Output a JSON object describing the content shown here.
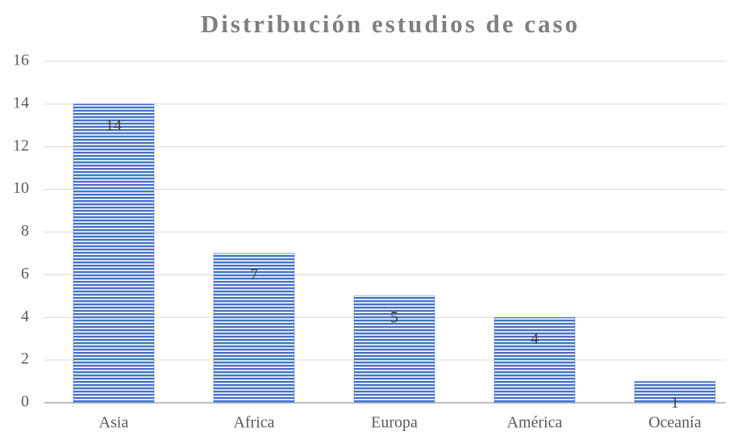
{
  "chart_data": {
    "type": "bar",
    "title": "Distribución estudios de caso",
    "categories": [
      "Asia",
      "Africa",
      "Europa",
      "América",
      "Oceanía"
    ],
    "values": [
      14,
      7,
      5,
      4,
      1
    ],
    "color": "#4472c4",
    "ylim": [
      0,
      16
    ],
    "yticks": [
      0,
      2,
      4,
      6,
      8,
      10,
      12,
      14,
      16
    ],
    "grid": true
  }
}
